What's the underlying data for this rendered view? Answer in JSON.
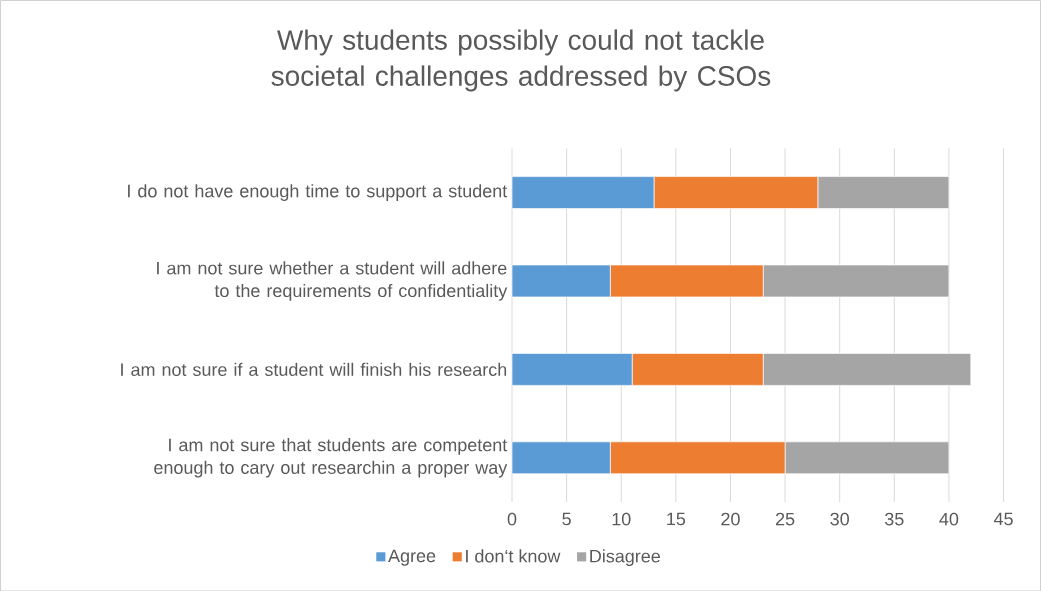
{
  "chart_data": {
    "type": "bar",
    "orientation": "horizontal",
    "stacked": true,
    "title": "Why students possibly could not tackle societal challenges addressed by CSOs",
    "categories": [
      "I do not have enough time to support a student",
      "I am not sure whether a student will adhere to the requirements of confidentiality",
      "I am not sure if a student will finish his research",
      "I am not sure that students are competent enough to cary out researchin a proper way"
    ],
    "series": [
      {
        "name": "Agree",
        "color": "#5b9bd5",
        "values": [
          13,
          9,
          11,
          9
        ]
      },
      {
        "name": "I don‘t know",
        "color": "#ed7d31",
        "values": [
          15,
          14,
          12,
          16
        ]
      },
      {
        "name": "Disagree",
        "color": "#a5a5a5",
        "values": [
          12,
          17,
          19,
          15
        ]
      }
    ],
    "xlim": [
      0,
      45
    ],
    "xticks": [
      0,
      5,
      10,
      15,
      20,
      25,
      30,
      35,
      40,
      45
    ],
    "grid": "x",
    "legend": "bottom"
  }
}
